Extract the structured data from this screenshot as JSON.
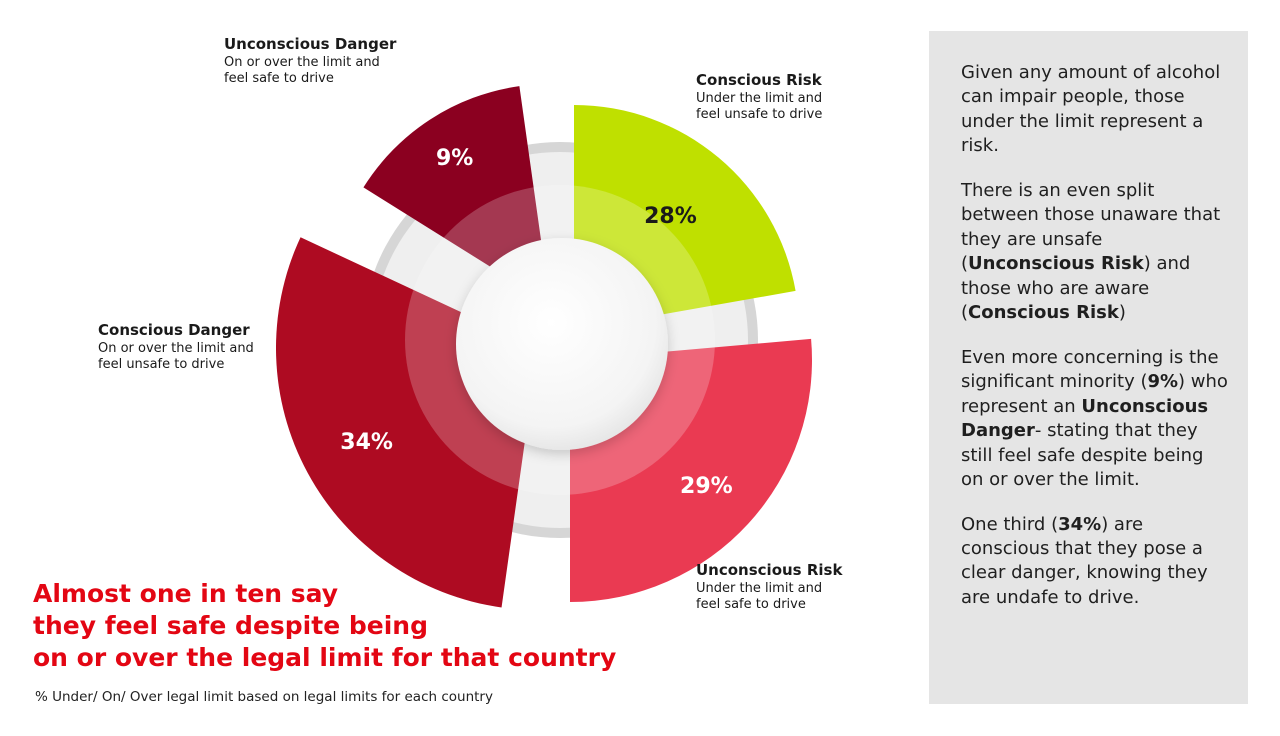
{
  "chart_data": {
    "type": "pie",
    "variant": "exploded radial sectors (bar-of-radius donut)",
    "segments": [
      {
        "name": "Conscious Risk",
        "value": 28,
        "value_label": "28%",
        "description_lines": [
          "Under the limit and",
          "feel unsafe to drive"
        ],
        "color": "#bfe000"
      },
      {
        "name": "Unconscious Risk",
        "value": 29,
        "value_label": "29%",
        "description_lines": [
          "Under the limit and",
          "feel safe to drive"
        ],
        "color": "#ea3a52"
      },
      {
        "name": "Conscious Danger",
        "value": 34,
        "value_label": "34%",
        "description_lines": [
          "On or over the limit and",
          "feel unsafe to drive"
        ],
        "color": "#ae0b22"
      },
      {
        "name": "Unconscious Danger",
        "value": 9,
        "value_label": "9%",
        "description_lines": [
          "On or over the limit and",
          "feel safe to drive"
        ],
        "color": "#8b0020"
      }
    ]
  },
  "headline_lines": [
    "Almost one in ten say",
    "they feel safe despite being",
    "on or over the legal limit for that country"
  ],
  "footnote": "% Under/ On/ Over legal limit based on legal limits for each country",
  "side_panel": {
    "paragraphs": [
      [
        {
          "text": "Given any amount of alcohol can impair people, those under the limit represent a risk."
        }
      ],
      [
        {
          "text": "There is an even split between those unaware that they are unsafe ("
        },
        {
          "text": "Unconscious Risk",
          "bold": true
        },
        {
          "text": ") and those who are aware ("
        },
        {
          "text": "Conscious Risk",
          "bold": true
        },
        {
          "text": ")"
        }
      ],
      [
        {
          "text": "Even more concerning is the significant minority ("
        },
        {
          "text": "9%",
          "bold": true
        },
        {
          "text": ") who represent an "
        },
        {
          "text": "Unconscious Danger",
          "bold": true
        },
        {
          "text": "- stating that they still feel safe despite being on or over the limit."
        }
      ],
      [
        {
          "text": "One third ("
        },
        {
          "text": "34%",
          "bold": true
        },
        {
          "text": ") are conscious that they pose a clear danger, knowing they are undafe to drive."
        }
      ]
    ]
  },
  "colors": {
    "headline": "#e30613",
    "panel_background": "#e5e5e5",
    "track": "#d6d6d6"
  }
}
